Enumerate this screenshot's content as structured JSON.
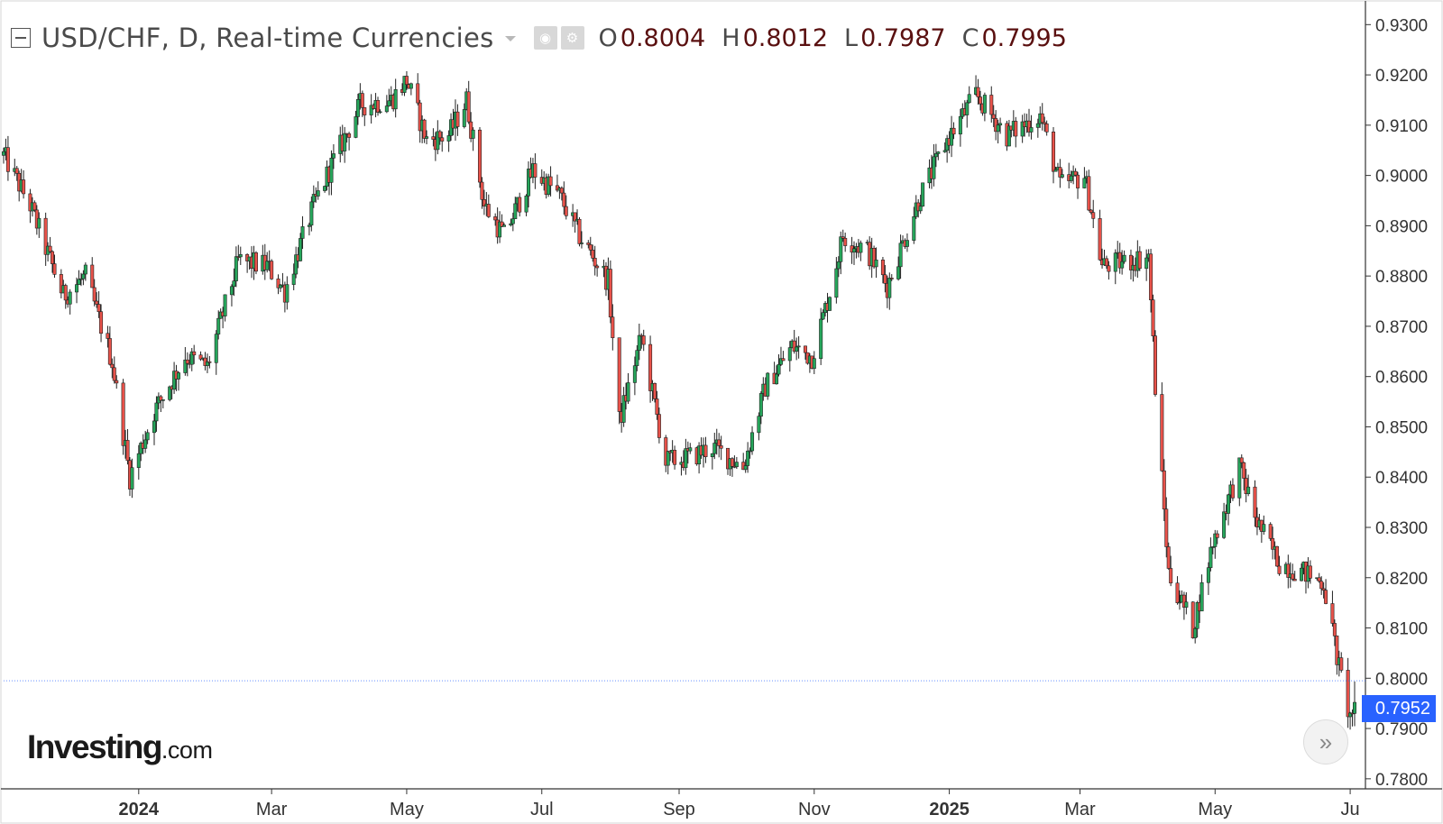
{
  "header": {
    "title": "USD/CHF, D, Real-time Currencies",
    "ohlc": [
      {
        "key": "O",
        "value": "0.8004"
      },
      {
        "key": "H",
        "value": "0.8012"
      },
      {
        "key": "L",
        "value": "0.7987"
      },
      {
        "key": "C",
        "value": "0.7995"
      }
    ],
    "icons": [
      "eye-icon",
      "gear-icon"
    ]
  },
  "logo": {
    "brand": "Investing",
    "domain": ".com"
  },
  "last_price_label": "0.7952",
  "colors": {
    "up": "#26a65b",
    "down": "#e8524a",
    "wick": "#222222",
    "axis": "#333333",
    "price_line": "#2962ff",
    "badge": "#2962ff"
  },
  "chart_data": {
    "type": "candlestick",
    "title": "USD/CHF, D, Real-time Currencies",
    "ylim": [
      0.778,
      0.934
    ],
    "y_ticks": [
      "0.9300",
      "0.9200",
      "0.9100",
      "0.9000",
      "0.8900",
      "0.8800",
      "0.8700",
      "0.8600",
      "0.8500",
      "0.8400",
      "0.8300",
      "0.8200",
      "0.8100",
      "0.8000",
      "0.7900",
      "0.7800"
    ],
    "x_ticks": [
      {
        "label": "2024",
        "date": "2024-01-01",
        "bold": true
      },
      {
        "label": "Mar",
        "date": "2024-03-01",
        "bold": false
      },
      {
        "label": "May",
        "date": "2024-05-01",
        "bold": false
      },
      {
        "label": "Jul",
        "date": "2024-07-01",
        "bold": false
      },
      {
        "label": "Sep",
        "date": "2024-09-01",
        "bold": false
      },
      {
        "label": "Nov",
        "date": "2024-11-01",
        "bold": false
      },
      {
        "label": "2025",
        "date": "2025-01-01",
        "bold": true
      },
      {
        "label": "Mar",
        "date": "2025-03-01",
        "bold": false
      },
      {
        "label": "May",
        "date": "2025-05-01",
        "bold": false
      },
      {
        "label": "Ju",
        "date": "2025-07-01",
        "bold": false
      }
    ],
    "date_range": [
      "2023-11-01",
      "2025-07-03"
    ],
    "last_price": 0.7952,
    "path": [
      [
        "2023-11-01",
        0.904
      ],
      [
        "2023-11-13",
        0.894
      ],
      [
        "2023-11-28",
        0.876
      ],
      [
        "2023-12-08",
        0.88
      ],
      [
        "2023-12-20",
        0.863
      ],
      [
        "2023-12-28",
        0.84
      ],
      [
        "2024-01-08",
        0.853
      ],
      [
        "2024-01-22",
        0.864
      ],
      [
        "2024-02-01",
        0.862
      ],
      [
        "2024-02-15",
        0.883
      ],
      [
        "2024-02-28",
        0.882
      ],
      [
        "2024-03-07",
        0.877
      ],
      [
        "2024-03-20",
        0.894
      ],
      [
        "2024-03-28",
        0.902
      ],
      [
        "2024-04-10",
        0.914
      ],
      [
        "2024-04-24",
        0.915
      ],
      [
        "2024-05-01",
        0.919
      ],
      [
        "2024-05-10",
        0.907
      ],
      [
        "2024-05-20",
        0.908
      ],
      [
        "2024-05-28",
        0.915
      ],
      [
        "2024-06-05",
        0.894
      ],
      [
        "2024-06-14",
        0.888
      ],
      [
        "2024-06-27",
        0.901
      ],
      [
        "2024-07-09",
        0.896
      ],
      [
        "2024-07-18",
        0.888
      ],
      [
        "2024-07-31",
        0.879
      ],
      [
        "2024-08-05",
        0.851
      ],
      [
        "2024-08-15",
        0.868
      ],
      [
        "2024-08-26",
        0.843
      ],
      [
        "2024-09-06",
        0.844
      ],
      [
        "2024-09-16",
        0.846
      ],
      [
        "2024-09-30",
        0.842
      ],
      [
        "2024-10-10",
        0.858
      ],
      [
        "2024-10-22",
        0.866
      ],
      [
        "2024-10-31",
        0.864
      ],
      [
        "2024-11-07",
        0.875
      ],
      [
        "2024-11-14",
        0.888
      ],
      [
        "2024-11-25",
        0.885
      ],
      [
        "2024-12-04",
        0.878
      ],
      [
        "2024-12-18",
        0.895
      ],
      [
        "2024-12-31",
        0.907
      ],
      [
        "2025-01-13",
        0.916
      ],
      [
        "2025-01-27",
        0.908
      ],
      [
        "2025-02-11",
        0.912
      ],
      [
        "2025-02-20",
        0.898
      ],
      [
        "2025-03-03",
        0.9
      ],
      [
        "2025-03-11",
        0.882
      ],
      [
        "2025-03-24",
        0.883
      ],
      [
        "2025-04-01",
        0.884
      ],
      [
        "2025-04-04",
        0.858
      ],
      [
        "2025-04-10",
        0.821
      ],
      [
        "2025-04-21",
        0.81
      ],
      [
        "2025-04-30",
        0.827
      ],
      [
        "2025-05-12",
        0.842
      ],
      [
        "2025-05-20",
        0.831
      ],
      [
        "2025-05-30",
        0.823
      ],
      [
        "2025-06-10",
        0.821
      ],
      [
        "2025-06-19",
        0.819
      ],
      [
        "2025-06-26",
        0.802
      ],
      [
        "2025-07-01",
        0.792
      ],
      [
        "2025-07-03",
        0.7952
      ]
    ]
  }
}
